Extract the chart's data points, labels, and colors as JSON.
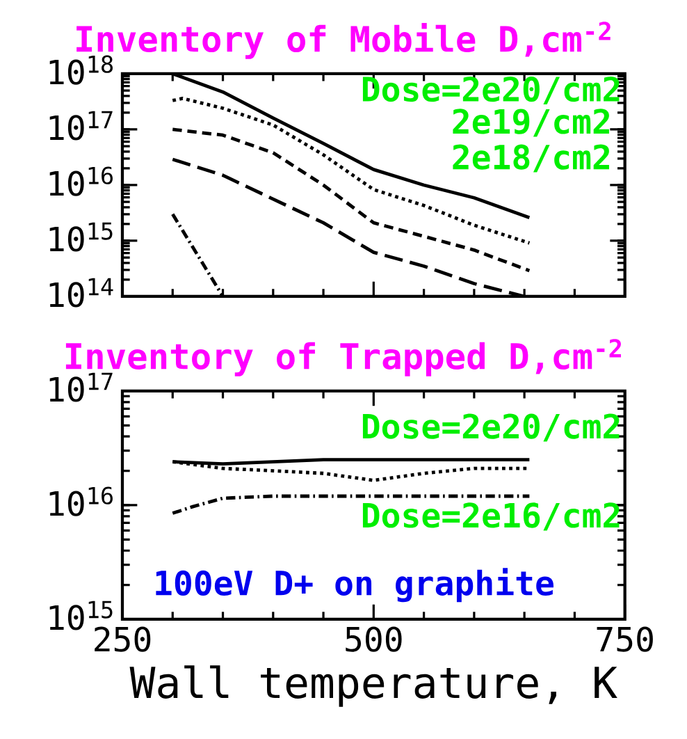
{
  "chart_data": [
    {
      "type": "line",
      "title": "Inventory of Mobile D,cm$^{-2}$",
      "xlim": [
        250,
        750
      ],
      "ylim": [
        100000000000000.0,
        1e+18
      ],
      "xticks": [
        250,
        500,
        750
      ],
      "yticks": [
        {
          "value": 100000000000000.0,
          "label": "10$^{14}$"
        },
        {
          "value": 1000000000000000.0,
          "label": "10$^{15}$"
        },
        {
          "value": 1e+16,
          "label": "10$^{16}$"
        },
        {
          "value": 1e+17,
          "label": "10$^{17}$"
        },
        {
          "value": 1e+18,
          "label": "10$^{18}$"
        }
      ],
      "log": "y",
      "tick_labels": "y",
      "series": [
        {
          "color": "#000000",
          "line_style": "solid",
          "x": [
            300,
            350,
            400,
            450,
            500,
            550,
            600,
            655
          ],
          "values": [
            1e+18,
            4.7e+17,
            1.6e+17,
            5.6e+16,
            1.9e+16,
            1e+16,
            5900000000000000.0,
            2600000000000000.0
          ]
        },
        {
          "color": "#000000",
          "line_style": "dotted",
          "x": [
            300,
            310,
            350,
            400,
            450,
            500,
            550,
            600,
            655
          ],
          "values": [
            3.3e+17,
            3.6e+17,
            2.4e+17,
            1.2e+17,
            3.5e+16,
            8300000000000000.0,
            4300000000000000.0,
            1900000000000000.0,
            910000000000000.0
          ]
        },
        {
          "color": "#000000",
          "line_style": "dashed",
          "x": [
            300,
            350,
            400,
            450,
            500,
            550,
            600,
            655
          ],
          "values": [
            1e+17,
            7.9e+16,
            3.8e+16,
            1e+16,
            2100000000000000.0,
            1200000000000000.0,
            680000000000000.0,
            290000000000000.0
          ]
        },
        {
          "color": "#000000",
          "line_style": "longdashed",
          "x": [
            300,
            350,
            400,
            450,
            500,
            550,
            600,
            650
          ],
          "values": [
            2.9e+16,
            1.5e+16,
            5600000000000000.0,
            2100000000000000.0,
            620000000000000.0,
            350000000000000.0,
            170000000000000.0,
            100000000000000.0
          ]
        },
        {
          "color": "#000000",
          "line_style": "dashdot",
          "x": [
            300,
            350
          ],
          "values": [
            3000000000000000.0,
            100000000000000.0
          ]
        }
      ],
      "annotations": [
        "Dose=2e20/cm2",
        "2e19/cm2",
        "2e18/cm2"
      ]
    },
    {
      "type": "line",
      "title": "Inventory of Trapped D,cm$^{-2}$",
      "xlabel": "Wall temperature, K",
      "xlim": [
        250,
        750
      ],
      "ylim": [
        1000000000000000.0,
        1e+17
      ],
      "xticks": [
        250,
        500,
        750
      ],
      "yticks": [
        {
          "value": 1000000000000000.0,
          "label": "10$^{15}$"
        },
        {
          "value": 1e+16,
          "label": "10$^{16}$"
        },
        {
          "value": 1e+17,
          "label": "10$^{17}$"
        }
      ],
      "log": "y",
      "series": [
        {
          "color": "#000000",
          "line_style": "solid",
          "x": [
            300,
            350,
            400,
            450,
            500,
            550,
            600,
            655
          ],
          "values": [
            2.4e+16,
            2.3e+16,
            2.4e+16,
            2.5e+16,
            2.5e+16,
            2.5e+16,
            2.5e+16,
            2.5e+16
          ]
        },
        {
          "color": "#000000",
          "line_style": "dotted",
          "x": [
            300,
            350,
            400,
            450,
            500,
            550,
            600,
            655
          ],
          "values": [
            2.4e+16,
            2.1e+16,
            2e+16,
            1.9e+16,
            1.65e+16,
            1.9e+16,
            2.1e+16,
            2.1e+16
          ]
        },
        {
          "color": "#000000",
          "line_style": "dashdot",
          "x": [
            300,
            320,
            350,
            400,
            450,
            500,
            550,
            600,
            655
          ],
          "values": [
            8500000000000000.0,
            9700000000000000.0,
            1.15e+16,
            1.2e+16,
            1.2e+16,
            1.2e+16,
            1.2e+16,
            1.2e+16,
            1.2e+16
          ]
        }
      ],
      "annotations": [
        "Dose=2e20/cm2",
        "Dose=2e16/cm2",
        "100eV D+ on graphite"
      ]
    }
  ]
}
